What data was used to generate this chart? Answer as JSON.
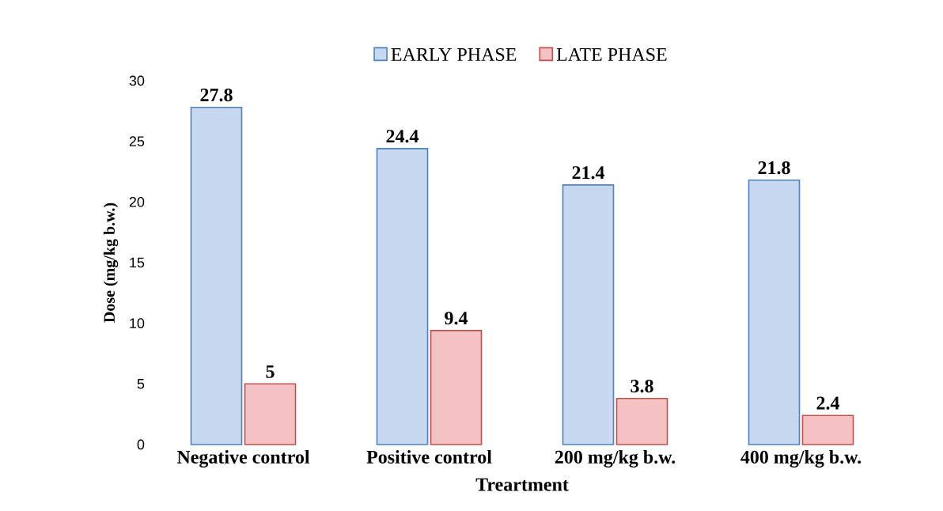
{
  "chart_data": {
    "type": "bar",
    "xlabel": "Treartment",
    "ylabel": "Dose (mg/kg b.w.)",
    "categories": [
      "Negative control",
      "Positive control",
      "200 mg/kg b.w.",
      "400 mg/kg b.w."
    ],
    "series": [
      {
        "name": "EARLY PHASE",
        "color": "#c6d9f1",
        "values": [
          27.8,
          24.4,
          21.4,
          21.8
        ]
      },
      {
        "name": "LATE PHASE",
        "color": "#f4c2c2",
        "values": [
          5,
          9.4,
          3.8,
          2.4
        ]
      }
    ],
    "ylim": [
      0,
      30
    ],
    "yticks": [
      0,
      5,
      10,
      15,
      20,
      25,
      30
    ],
    "grid": false,
    "legend": "top",
    "data_labels": true
  }
}
